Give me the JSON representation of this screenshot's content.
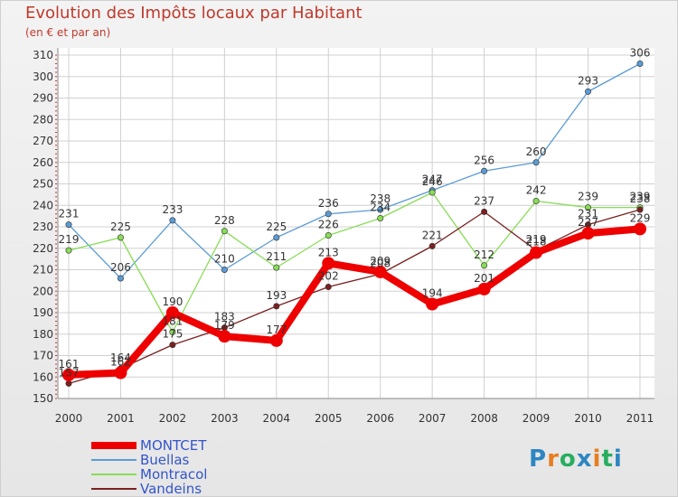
{
  "chart_data": {
    "type": "line",
    "title": "Evolution des Impôts locaux par Habitant",
    "subtitle": "(en € et par an)",
    "categories": [
      "2000",
      "2001",
      "2002",
      "2003",
      "2004",
      "2005",
      "2006",
      "2007",
      "2008",
      "2009",
      "2010",
      "2011"
    ],
    "ylim": [
      150,
      310
    ],
    "yticks": [
      150,
      160,
      170,
      180,
      190,
      200,
      210,
      220,
      230,
      240,
      250,
      260,
      270,
      280,
      290,
      300,
      310
    ],
    "grid": true,
    "legend_position": "bottom-left",
    "series": [
      {
        "name": "MONTCET",
        "color": "#ee0000",
        "values": [
          161,
          162,
          190,
          179,
          177,
          213,
          209,
          194,
          201,
          218,
          227,
          229
        ]
      },
      {
        "name": "Buellas",
        "color": "#5b9bd5",
        "values": [
          231,
          206,
          233,
          210,
          225,
          236,
          238,
          247,
          256,
          260,
          293,
          306
        ]
      },
      {
        "name": "Montracol",
        "color": "#88dd55",
        "values": [
          219,
          225,
          181,
          228,
          211,
          226,
          234,
          246,
          212,
          242,
          239,
          239
        ]
      },
      {
        "name": "Vandeins",
        "color": "#7a2020",
        "values": [
          157,
          164,
          175,
          183,
          193,
          202,
          208,
          221,
          237,
          219,
          231,
          238
        ]
      }
    ]
  },
  "watermark": "Proxiti"
}
